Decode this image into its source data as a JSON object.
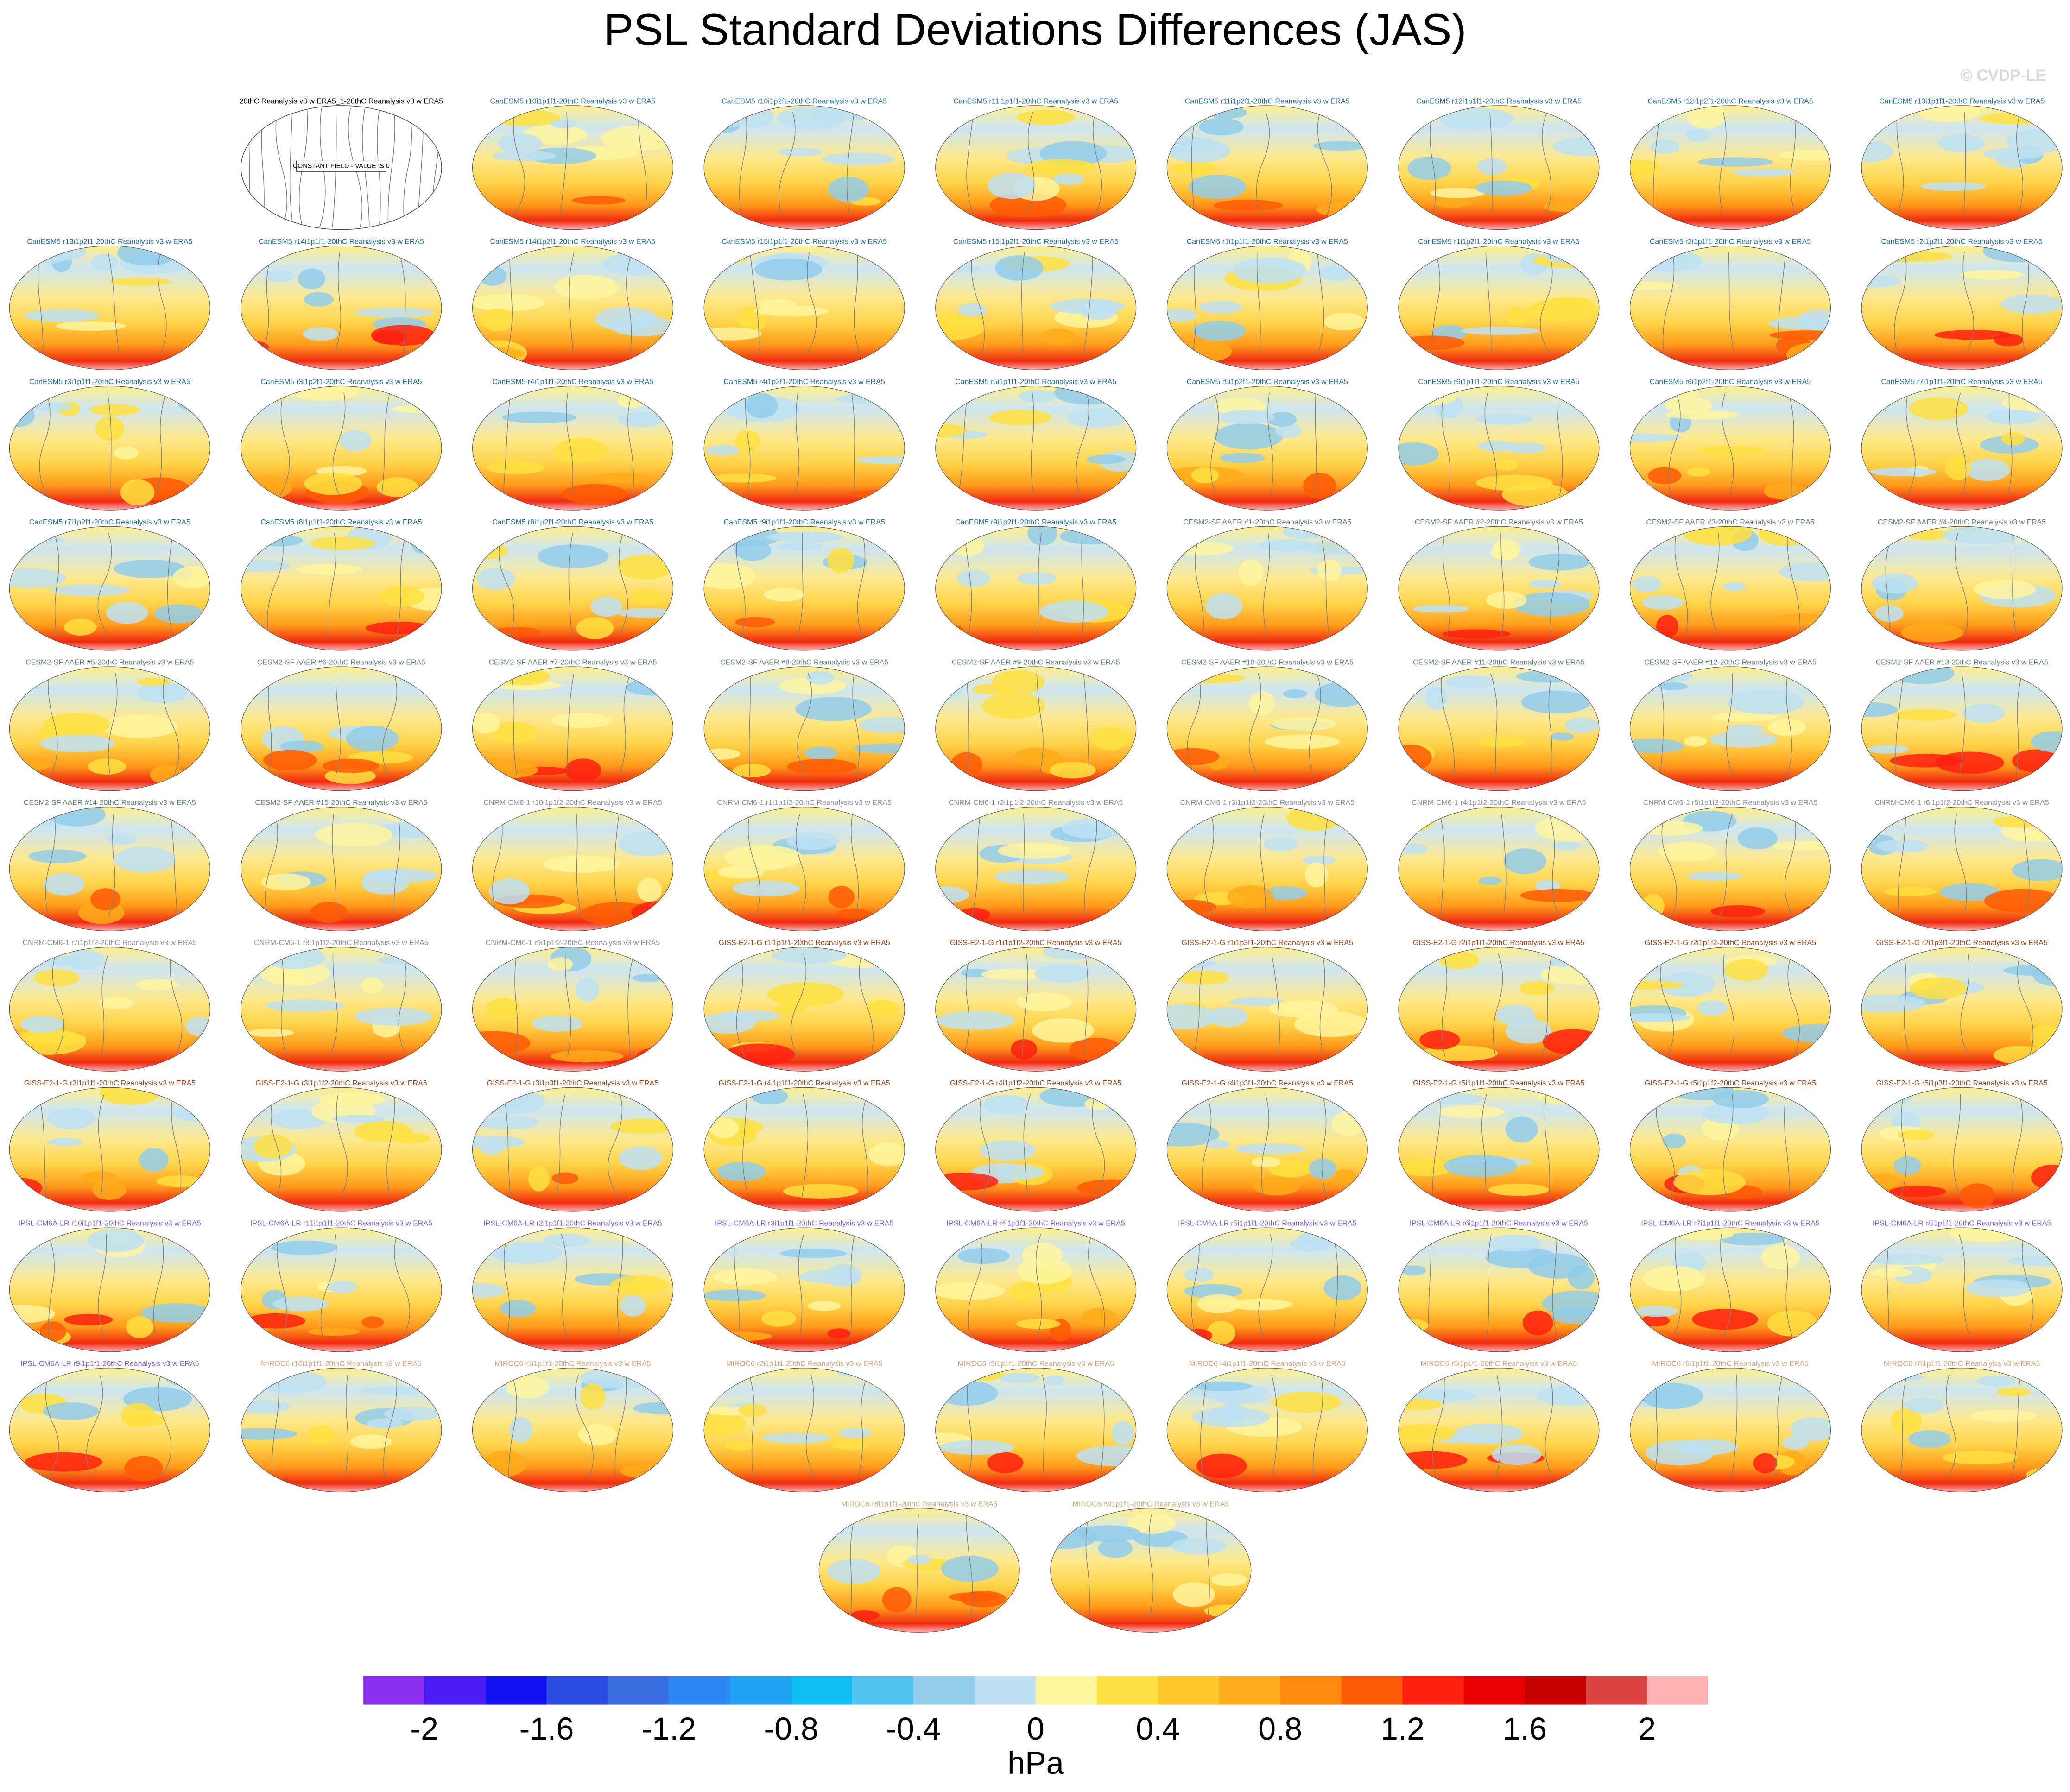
{
  "title": "PSL Standard Deviations Differences (JAS)",
  "credit": "© CVDP-LE",
  "obs": {
    "title": "20thC Reanalysis v3 w ERA5_1-20thC Reanalysis v3 w ERA5",
    "note": "CONSTANT FIELD - VALUE IS 0"
  },
  "groups": [
    {
      "color": "#1f6f9f",
      "titles": [
        "CanESM5 r10i1p1f1-20thC Reanalysis v3 w ERA5",
        "CanESM5 r10i1p2f1-20thC Reanalysis v3 w ERA5",
        "CanESM5 r11i1p1f1-20thC Reanalysis v3 w ERA5",
        "CanESM5 r11i1p2f1-20thC Reanalysis v3 w ERA5",
        "CanESM5 r12i1p1f1-20thC Reanalysis v3 w ERA5",
        "CanESM5 r12i1p2f1-20thC Reanalysis v3 w ERA5",
        "CanESM5 r13i1p1f1-20thC Reanalysis v3 w ERA5",
        "CanESM5 r13i1p2f1-20thC Reanalysis v3 w ERA5",
        "CanESM5 r14i1p1f1-20thC Reanalysis v3 w ERA5",
        "CanESM5 r14i1p2f1-20thC Reanalysis v3 w ERA5",
        "CanESM5 r15i1p1f1-20thC Reanalysis v3 w ERA5",
        "CanESM5 r15i1p2f1-20thC Reanalysis v3 w ERA5",
        "CanESM5 r1i1p1f1-20thC Reanalysis v3 w ERA5",
        "CanESM5 r1i1p2f1-20thC Reanalysis v3 w ERA5",
        "CanESM5 r2i1p1f1-20thC Reanalysis v3 w ERA5",
        "CanESM5 r2i1p2f1-20thC Reanalysis v3 w ERA5",
        "CanESM5 r3i1p1f1-20thC Reanalysis v3 w ERA5",
        "CanESM5 r3i1p2f1-20thC Reanalysis v3 w ERA5",
        "CanESM5 r4i1p1f1-20thC Reanalysis v3 w ERA5",
        "CanESM5 r4i1p2f1-20thC Reanalysis v3 w ERA5",
        "CanESM5 r5i1p1f1-20thC Reanalysis v3 w ERA5",
        "CanESM5 r5i1p2f1-20thC Reanalysis v3 w ERA5",
        "CanESM5 r6i1p1f1-20thC Reanalysis v3 w ERA5",
        "CanESM5 r6i1p2f1-20thC Reanalysis v3 w ERA5",
        "CanESM5 r7i1p1f1-20thC Reanalysis v3 w ERA5",
        "CanESM5 r7i1p2f1-20thC Reanalysis v3 w ERA5",
        "CanESM5 r8i1p1f1-20thC Reanalysis v3 w ERA5",
        "CanESM5 r8i1p2f1-20thC Reanalysis v3 w ERA5",
        "CanESM5 r9i1p1f1-20thC Reanalysis v3 w ERA5",
        "CanESM5 r9i1p2f1-20thC Reanalysis v3 w ERA5"
      ]
    },
    {
      "color": "#5f7f6f",
      "titles": [
        "CESM2-SF AAER #1-20thC Reanalysis v3 w ERA5",
        "CESM2-SF AAER #2-20thC Reanalysis v3 w ERA5",
        "CESM2-SF AAER #3-20thC Reanalysis v3 w ERA5",
        "CESM2-SF AAER #4-20thC Reanalysis v3 w ERA5",
        "CESM2-SF AAER #5-20thC Reanalysis v3 w ERA5",
        "CESM2-SF AAER #6-20thC Reanalysis v3 w ERA5",
        "CESM2-SF AAER #7-20thC Reanalysis v3 w ERA5",
        "CESM2-SF AAER #8-20thC Reanalysis v3 w ERA5",
        "CESM2-SF AAER #9-20thC Reanalysis v3 w ERA5",
        "CESM2-SF AAER #10-20thC Reanalysis v3 w ERA5",
        "CESM2-SF AAER #11-20thC Reanalysis v3 w ERA5",
        "CESM2-SF AAER #12-20thC Reanalysis v3 w ERA5",
        "CESM2-SF AAER #13-20thC Reanalysis v3 w ERA5",
        "CESM2-SF AAER #14-20thC Reanalysis v3 w ERA5",
        "CESM2-SF AAER #15-20thC Reanalysis v3 w ERA5"
      ]
    },
    {
      "color": "#8c8c8c",
      "titles": [
        "CNRM-CM6-1 r10i1p1f2-20thC Reanalysis v3 w ERA5",
        "CNRM-CM6-1 r1i1p1f2-20thC Reanalysis v3 w ERA5",
        "CNRM-CM6-1 r2i1p1f2-20thC Reanalysis v3 w ERA5",
        "CNRM-CM6-1 r3i1p1f2-20thC Reanalysis v3 w ERA5",
        "CNRM-CM6-1 r4i1p1f2-20thC Reanalysis v3 w ERA5",
        "CNRM-CM6-1 r5i1p1f2-20thC Reanalysis v3 w ERA5",
        "CNRM-CM6-1 r6i1p1f2-20thC Reanalysis v3 w ERA5",
        "CNRM-CM6-1 r7i1p1f2-20thC Reanalysis v3 w ERA5",
        "CNRM-CM6-1 r8i1p1f2-20thC Reanalysis v3 w ERA5",
        "CNRM-CM6-1 r9i1p1f2-20thC Reanalysis v3 w ERA5"
      ]
    },
    {
      "color": "#a5400f",
      "titles": [
        "GISS-E2-1-G r1i1p1f1-20thC Reanalysis v3 w ERA5",
        "GISS-E2-1-G r1i1p1f2-20thC Reanalysis v3 w ERA5",
        "GISS-E2-1-G r1i1p3f1-20thC Reanalysis v3 w ERA5",
        "GISS-E2-1-G r2i1p1f1-20thC Reanalysis v3 w ERA5",
        "GISS-E2-1-G r2i1p1f2-20thC Reanalysis v3 w ERA5",
        "GISS-E2-1-G r2i1p3f1-20thC Reanalysis v3 w ERA5",
        "GISS-E2-1-G r3i1p1f1-20thC Reanalysis v3 w ERA5",
        "GISS-E2-1-G r3i1p1f2-20thC Reanalysis v3 w ERA5",
        "GISS-E2-1-G r3i1p3f1-20thC Reanalysis v3 w ERA5",
        "GISS-E2-1-G r4i1p1f1-20thC Reanalysis v3 w ERA5",
        "GISS-E2-1-G r4i1p1f2-20thC Reanalysis v3 w ERA5",
        "GISS-E2-1-G r4i1p3f1-20thC Reanalysis v3 w ERA5",
        "GISS-E2-1-G r5i1p1f1-20thC Reanalysis v3 w ERA5",
        "GISS-E2-1-G r5i1p1f2-20thC Reanalysis v3 w ERA5",
        "GISS-E2-1-G r5i1p3f1-20thC Reanalysis v3 w ERA5"
      ]
    },
    {
      "color": "#7a5ad8",
      "titles": [
        "IPSL-CM6A-LR r10i1p1f1-20thC Reanalysis v3 w ERA5",
        "IPSL-CM6A-LR r11i1p1f1-20thC Reanalysis v3 w ERA5",
        "IPSL-CM6A-LR r2i1p1f1-20thC Reanalysis v3 w ERA5",
        "IPSL-CM6A-LR r3i1p1f1-20thC Reanalysis v3 w ERA5",
        "IPSL-CM6A-LR r4i1p1f1-20thC Reanalysis v3 w ERA5",
        "IPSL-CM6A-LR r5i1p1f1-20thC Reanalysis v3 w ERA5",
        "IPSL-CM6A-LR r6i1p1f1-20thC Reanalysis v3 w ERA5",
        "IPSL-CM6A-LR r7i1p1f1-20thC Reanalysis v3 w ERA5",
        "IPSL-CM6A-LR r8i1p1f1-20thC Reanalysis v3 w ERA5",
        "IPSL-CM6A-LR r9i1p1f1-20thC Reanalysis v3 w ERA5"
      ]
    },
    {
      "color": "#d4a373",
      "titles": [
        "MIROC6 r10i1p1f1-20thC Reanalysis v3 w ERA5",
        "MIROC6 r1i1p1f1-20thC Reanalysis v3 w ERA5",
        "MIROC6 r2i1p1f1-20thC Reanalysis v3 w ERA5",
        "MIROC6 r3i1p1f1-20thC Reanalysis v3 w ERA5",
        "MIROC6 r4i1p1f1-20thC Reanalysis v3 w ERA5",
        "MIROC6 r5i1p1f1-20thC Reanalysis v3 w ERA5",
        "MIROC6 r6i1p1f1-20thC Reanalysis v3 w ERA5",
        "MIROC6 r7i1p1f1-20thC Reanalysis v3 w ERA5",
        "MIROC6 r8i1p1f1-20thC Reanalysis v3 w ERA5",
        "MIROC6 r9i1p1f1-20thC Reanalysis v3 w ERA5"
      ]
    }
  ],
  "colorbar": {
    "levels": [
      -2,
      -1.8,
      -1.6,
      -1.4,
      -1.2,
      -1,
      -0.8,
      -0.6,
      -0.4,
      -0.2,
      0,
      0.2,
      0.4,
      0.6,
      0.8,
      1,
      1.2,
      1.4,
      1.6,
      1.8,
      2
    ],
    "colors": [
      "#8a2ff0",
      "#4a1cf5",
      "#1010f0",
      "#2a4ce0",
      "#3a6ee0",
      "#2a86f2",
      "#20a2f4",
      "#0ebef4",
      "#52c2f0",
      "#92cdeb",
      "#bde1f3",
      "#fff59d",
      "#ffe040",
      "#ffc72a",
      "#ffab1a",
      "#ff8a0e",
      "#ff5a05",
      "#ff2010",
      "#ea0000",
      "#c80000",
      "#dc4444",
      "#ffb2b2"
    ],
    "ticks": [
      -2,
      -1.6,
      -1.2,
      -0.8,
      -0.4,
      0,
      0.4,
      0.8,
      1.2,
      1.6,
      2
    ],
    "label": "hPa"
  }
}
